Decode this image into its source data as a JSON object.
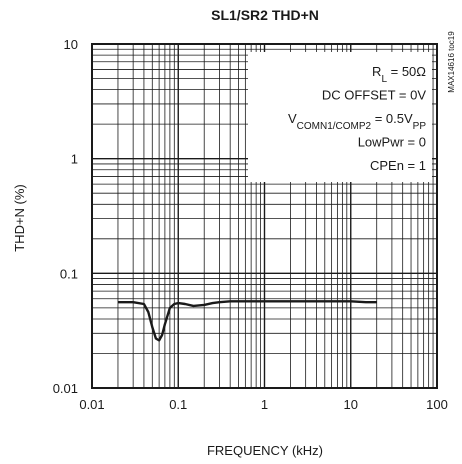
{
  "chart_data": {
    "type": "line",
    "title": "SL1/SR2 THD+N",
    "xlabel": "FREQUENCY (kHz)",
    "ylabel": "THD+N (%)",
    "x_scale": "log",
    "y_scale": "log",
    "xlim": [
      0.01,
      100
    ],
    "ylim": [
      0.01,
      10
    ],
    "x_tick_labels": [
      "0.01",
      "0.1",
      "1",
      "10",
      "100"
    ],
    "y_tick_labels": [
      "10",
      "1",
      "0.1",
      "0.01"
    ],
    "grid": true,
    "chart_id": "MAX14616 toc19",
    "annotations": [
      {
        "text": "R",
        "sub": "L",
        "tail": " = 50Ω"
      },
      {
        "text": "DC OFFSET = 0V",
        "sub": "",
        "tail": ""
      },
      {
        "text": "V",
        "sub": "COMN1/COMP2",
        "tail": " = 0.5V",
        "sub2": "PP"
      },
      {
        "text": "LowPwr = 0",
        "sub": "",
        "tail": ""
      },
      {
        "text": "CPEn = 1",
        "sub": "",
        "tail": ""
      }
    ],
    "series": [
      {
        "x": [
          0.02,
          0.03,
          0.04,
          0.045,
          0.05,
          0.055,
          0.06,
          0.065,
          0.07,
          0.08,
          0.09,
          0.1,
          0.12,
          0.15,
          0.2,
          0.25,
          0.3,
          0.4,
          0.5,
          0.7,
          1,
          2,
          3,
          5,
          10,
          15,
          20
        ],
        "y": [
          0.056,
          0.056,
          0.054,
          0.046,
          0.034,
          0.027,
          0.026,
          0.029,
          0.036,
          0.05,
          0.054,
          0.055,
          0.054,
          0.052,
          0.053,
          0.055,
          0.056,
          0.057,
          0.057,
          0.057,
          0.057,
          0.057,
          0.057,
          0.057,
          0.057,
          0.056,
          0.056
        ]
      }
    ]
  },
  "style": {
    "line_color": "#1a1a1a",
    "grid_color": "#1a1a1a"
  }
}
